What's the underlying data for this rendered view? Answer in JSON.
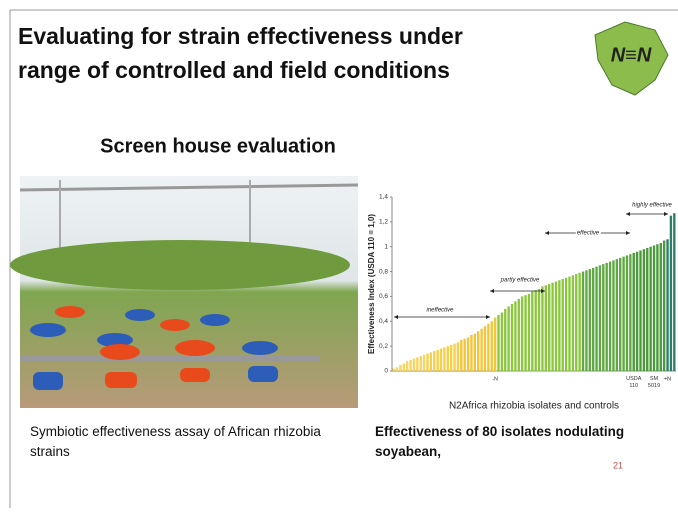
{
  "header": {
    "title_lines": [
      "Evaluating for strain effectiveness under",
      "range of controlled and field conditions"
    ],
    "logo": "N≡N"
  },
  "photo_heading": "Screen  house evaluation",
  "left_caption": "Symbiotic effectiveness assay of African rhizobia strains",
  "right_caption": "Effectiveness of 80 isolates nodulating soyabean,",
  "page_number": "21",
  "chart_data": {
    "type": "bar",
    "y_label": "Effectiveness Index (USDA 110 = 1,0)",
    "x_label": "N2Africa rhizobia isolates and controls",
    "annotations": [
      "ineffective",
      "partly effective",
      "effective",
      "highly effective"
    ],
    "ylim": [
      0,
      1.4
    ],
    "yticks": [
      0,
      {
        "value": 0.2,
        "label": "0,2"
      },
      {
        "value": 0.4,
        "label": "0,4"
      },
      {
        "value": 0.6,
        "label": "0,6"
      },
      {
        "value": 0.8,
        "label": "0,8"
      },
      1,
      {
        "value": 1.2,
        "label": "1,2"
      },
      {
        "value": 1.4,
        "label": "1,4"
      }
    ],
    "grid": false,
    "categories": [
      null,
      null,
      null,
      null,
      null,
      null,
      null,
      null,
      null,
      null,
      null,
      null,
      null,
      null,
      null,
      null,
      null,
      null,
      null,
      null,
      null,
      null,
      null,
      null,
      null,
      null,
      null,
      null,
      null,
      null,
      "-N",
      null,
      null,
      null,
      null,
      null,
      null,
      null,
      null,
      null,
      null,
      null,
      null,
      null,
      null,
      null,
      null,
      null,
      null,
      null,
      null,
      null,
      null,
      null,
      null,
      null,
      null,
      null,
      null,
      null,
      null,
      null,
      null,
      null,
      null,
      null,
      null,
      null,
      null,
      null,
      null,
      "USDA 110",
      null,
      null,
      null,
      null,
      null,
      "SM 5019",
      null,
      null,
      null,
      "+N",
      null,
      null
    ],
    "values": [
      0.02,
      0.03,
      0.05,
      0.06,
      0.08,
      0.09,
      0.1,
      0.11,
      0.12,
      0.13,
      0.14,
      0.15,
      0.16,
      0.17,
      0.18,
      0.19,
      0.2,
      0.21,
      0.22,
      0.23,
      0.25,
      0.26,
      0.27,
      0.29,
      0.3,
      0.32,
      0.34,
      0.36,
      0.38,
      0.4,
      0.43,
      0.45,
      0.47,
      0.5,
      0.52,
      0.54,
      0.56,
      0.58,
      0.6,
      0.61,
      0.62,
      0.64,
      0.65,
      0.66,
      0.68,
      0.69,
      0.7,
      0.71,
      0.72,
      0.73,
      0.74,
      0.75,
      0.76,
      0.77,
      0.78,
      0.79,
      0.8,
      0.81,
      0.82,
      0.83,
      0.84,
      0.85,
      0.86,
      0.87,
      0.88,
      0.89,
      0.9,
      0.91,
      0.92,
      0.93,
      0.94,
      0.95,
      0.96,
      0.97,
      0.98,
      0.99,
      1.0,
      1.01,
      1.02,
      1.03,
      1.05,
      1.06,
      1.25,
      1.27
    ],
    "colors": [
      "#f7d560",
      "#f7d560",
      "#f7d560",
      "#f7d560",
      "#f7d560",
      "#f7d560",
      "#f7d560",
      "#f7d560",
      "#f7d560",
      "#f7d560",
      "#f6cf4c",
      "#f6cf4c",
      "#f6cf4c",
      "#f6cf4c",
      "#f6cf4c",
      "#f6cf4c",
      "#f6cf4c",
      "#f6cf4c",
      "#f6cf4c",
      "#f6cf4c",
      "#f2c53a",
      "#f2c53a",
      "#f2c53a",
      "#f2c53a",
      "#f2c53a",
      "#f2c53a",
      "#f2c53a",
      "#f2c53a",
      "#f2c53a",
      "#f2c53a",
      "#f2c53a",
      "#8cc63f",
      "#8cc63f",
      "#8cc63f",
      "#8cc63f",
      "#8cc63f",
      "#8cc63f",
      "#8cc63f",
      "#8cc63f",
      "#8cc63f",
      "#8cc63f",
      "#8cc63f",
      "#8cc63f",
      "#8cc63f",
      "#8cc63f",
      "#8cc63f",
      "#8cc63f",
      "#8cc63f",
      "#8cc63f",
      "#8cc63f",
      "#8cc63f",
      "#8cc63f",
      "#8cc63f",
      "#8cc63f",
      "#8cc63f",
      "#8cc63f",
      "#5fa843",
      "#5fa843",
      "#5fa843",
      "#5fa843",
      "#5fa843",
      "#5fa843",
      "#5fa843",
      "#5fa843",
      "#5fa843",
      "#5fa843",
      "#5fa843",
      "#5fa843",
      "#5fa843",
      "#5fa843",
      "#5fa843",
      "#4a9a3a",
      "#4a9a3a",
      "#4a9a3a",
      "#4a9a3a",
      "#4a9a3a",
      "#4a9a3a",
      "#4a9a3a",
      "#4a9a3a",
      "#4a9a3a",
      "#4a9a3a",
      "#2e7d6b",
      "#2e7d6b",
      "#2e7d6b"
    ]
  }
}
